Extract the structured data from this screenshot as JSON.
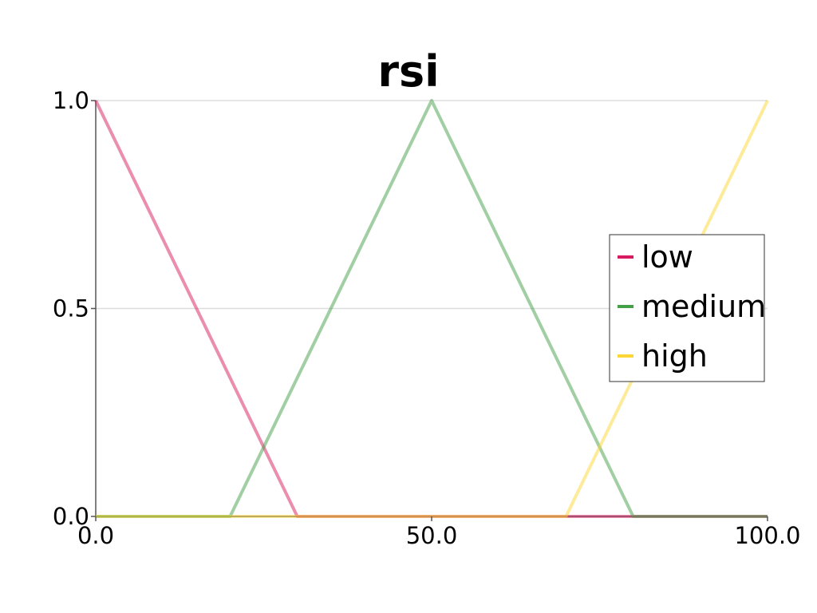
{
  "chart_data": {
    "type": "line",
    "title": "rsi",
    "xlabel": "",
    "ylabel": "",
    "xlim": [
      0,
      100
    ],
    "ylim": [
      0,
      1
    ],
    "x_ticks": [
      "0.0",
      "50.0",
      "100.0"
    ],
    "y_ticks": [
      "0.0",
      "0.5",
      "1.0"
    ],
    "x_tick_values": [
      0,
      50,
      100
    ],
    "y_tick_values": [
      0,
      0.5,
      1
    ],
    "grid": true,
    "legend_position": "right",
    "series": [
      {
        "name": "low",
        "color": "#d81b60",
        "x": [
          0,
          30,
          100
        ],
        "y": [
          1,
          0,
          0
        ]
      },
      {
        "name": "medium",
        "color": "#43a047",
        "x": [
          0,
          20,
          50,
          80,
          100
        ],
        "y": [
          0,
          0,
          1,
          0,
          0
        ]
      },
      {
        "name": "high",
        "color": "#fdd835",
        "x": [
          0,
          70,
          100
        ],
        "y": [
          0,
          0,
          1
        ]
      }
    ]
  }
}
